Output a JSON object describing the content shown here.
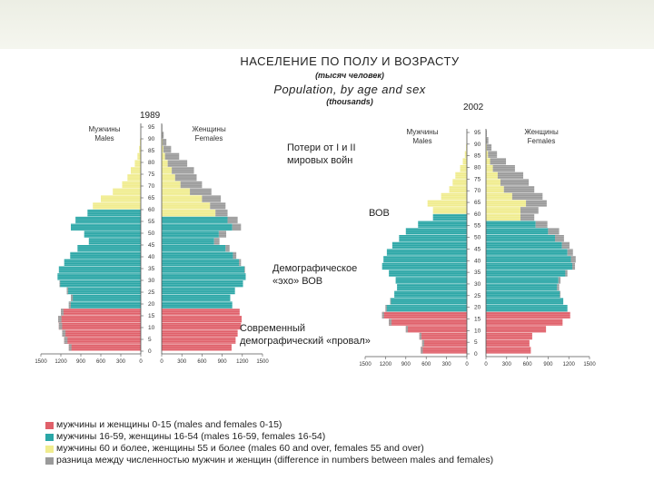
{
  "header": {
    "title_ru": "НАСЕЛЕНИЕ ПО ПОЛУ И ВОЗРАСТУ",
    "subtitle_ru": "(тысяч человек)",
    "title_en": "Population, by age and sex",
    "subtitle_en": "(thousands)"
  },
  "annotations": {
    "war_losses": [
      "Потери от I и II",
      "мировых войн"
    ],
    "wwii": "ВОВ",
    "echo": [
      "Демографическое",
      "«эхо» ВОВ"
    ],
    "dip": [
      "Современный",
      "демографический «провал»"
    ]
  },
  "legend": [
    {
      "color": "#e0606a",
      "label": "мужчины и женщины 0-15 (males and females 0-15)"
    },
    {
      "color": "#2aa6a6",
      "label": "мужчины 16-59, женщины 16-54 (males 16-59, females 16-54)"
    },
    {
      "color": "#f0ec8e",
      "label": "мужчины 60 и более, женщины 55 и более (males 60 and over, females 55 and over)"
    },
    {
      "color": "#9a9a9a",
      "label": "разница между численностью мужчин и женщин (difference in numbers between males and females)"
    }
  ],
  "chart_data": [
    {
      "type": "bar",
      "orientation": "horizontal-pyramid",
      "year": "1989",
      "male_label": [
        "Мужчины",
        "Males"
      ],
      "female_label": [
        "Женщины",
        "Females"
      ],
      "age_ticks": [
        "95",
        "90",
        "85",
        "80",
        "75",
        "70",
        "65",
        "60",
        "55",
        "50",
        "45",
        "40",
        "35",
        "30",
        "25",
        "20",
        "15",
        "10",
        "5",
        "0"
      ],
      "male_ticks": [
        "1500",
        "1200",
        "900",
        "600",
        "300",
        "0"
      ],
      "female_ticks": [
        "0",
        "300",
        "600",
        "900",
        "1200",
        "1500"
      ],
      "xlim": [
        0,
        1500
      ],
      "ages": [
        0,
        3,
        6,
        9,
        12,
        15,
        18,
        21,
        24,
        27,
        30,
        33,
        36,
        39,
        42,
        45,
        48,
        51,
        54,
        57,
        60,
        63,
        66,
        69,
        72,
        75,
        78,
        81,
        84,
        87,
        90,
        93
      ],
      "male_values": [
        1080,
        1150,
        1180,
        1230,
        1240,
        1200,
        1080,
        1050,
        1110,
        1220,
        1250,
        1230,
        1150,
        1060,
        950,
        780,
        850,
        1050,
        980,
        800,
        720,
        600,
        420,
        280,
        200,
        150,
        90,
        50,
        25,
        12,
        5,
        2
      ],
      "female_values": [
        1040,
        1100,
        1130,
        1180,
        1190,
        1160,
        1050,
        1020,
        1090,
        1210,
        1250,
        1240,
        1180,
        1110,
        1010,
        860,
        960,
        1180,
        1130,
        980,
        950,
        880,
        740,
        600,
        520,
        480,
        380,
        260,
        140,
        70,
        30,
        10
      ]
    },
    {
      "type": "bar",
      "orientation": "horizontal-pyramid",
      "year": "2002",
      "male_label": [
        "Мужчины",
        "Males"
      ],
      "female_label": [
        "Женщины",
        "Females"
      ],
      "age_ticks": [
        "95",
        "90",
        "85",
        "80",
        "75",
        "70",
        "65",
        "60",
        "55",
        "50",
        "45",
        "40",
        "35",
        "30",
        "25",
        "20",
        "15",
        "10",
        "5",
        "0"
      ],
      "male_ticks": [
        "1500",
        "1200",
        "900",
        "600",
        "300",
        "0"
      ],
      "female_ticks": [
        "0",
        "300",
        "600",
        "900",
        "1200",
        "1500"
      ],
      "xlim": [
        0,
        1500
      ],
      "ages": [
        0,
        3,
        6,
        9,
        12,
        15,
        18,
        21,
        24,
        27,
        30,
        33,
        36,
        39,
        42,
        45,
        48,
        51,
        54,
        57,
        60,
        63,
        66,
        69,
        72,
        75,
        78,
        81,
        84,
        87,
        90,
        93
      ],
      "male_values": [
        680,
        660,
        700,
        900,
        1150,
        1250,
        1200,
        1130,
        1070,
        1030,
        1050,
        1150,
        1250,
        1230,
        1180,
        1100,
        1000,
        900,
        720,
        500,
        500,
        580,
        380,
        260,
        210,
        170,
        100,
        60,
        30,
        12,
        5,
        2
      ],
      "female_values": [
        650,
        630,
        670,
        870,
        1110,
        1220,
        1180,
        1120,
        1080,
        1060,
        1080,
        1180,
        1290,
        1300,
        1260,
        1210,
        1130,
        1060,
        890,
        700,
        760,
        880,
        820,
        700,
        620,
        540,
        420,
        290,
        160,
        80,
        35,
        12
      ]
    }
  ]
}
